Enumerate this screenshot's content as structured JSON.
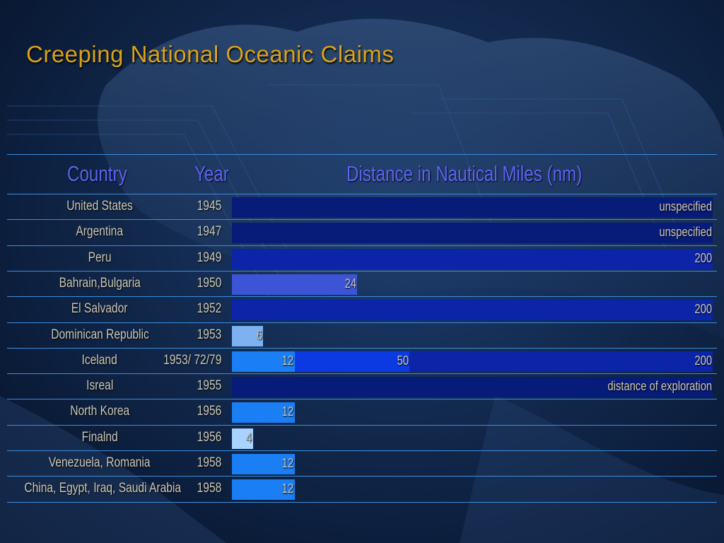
{
  "title": "Creeping National Oceanic Claims",
  "headers": {
    "country": "Country",
    "year": "Year",
    "distance": "Distance in Nautical Miles (nm)"
  },
  "colors": {
    "title": "#d8a21a",
    "header": "#5b64f0",
    "text": "#c9c7b6",
    "rule": "#3a8ee0",
    "seg_4": "#a9d3ff",
    "seg_6": "#7cb1f2",
    "seg_12": "#1a7ef4",
    "seg_24": "#3b55d6",
    "seg_50": "#0b3ae3",
    "seg_200": "#0b24a8",
    "seg_unspecified": "#071b78"
  },
  "chart_data": {
    "type": "bar",
    "title": "Creeping National Oceanic Claims",
    "xlabel": "Distance in Nautical Miles (nm)",
    "xlim": [
      0,
      200
    ],
    "columns": [
      "Country",
      "Year"
    ],
    "rows": [
      {
        "country": "United States",
        "year": "1945",
        "segments": [
          {
            "value": 200,
            "label": "unspecified",
            "kind": "unspecified"
          }
        ]
      },
      {
        "country": "Argentina",
        "year": "1947",
        "segments": [
          {
            "value": 200,
            "label": "unspecified",
            "kind": "unspecified"
          }
        ]
      },
      {
        "country": "Peru",
        "year": "1949",
        "segments": [
          {
            "value": 200,
            "label": "200",
            "kind": "200"
          }
        ]
      },
      {
        "country": "Bahrain,Bulgaria",
        "year": "1950",
        "segments": [
          {
            "value": 24,
            "label": "24",
            "kind": "24"
          }
        ]
      },
      {
        "country": "El Salvador",
        "year": "1952",
        "segments": [
          {
            "value": 200,
            "label": "200",
            "kind": "200"
          }
        ]
      },
      {
        "country": "Dominican Republic",
        "year": "1953",
        "segments": [
          {
            "value": 6,
            "label": "6",
            "kind": "6"
          }
        ]
      },
      {
        "country": "Iceland",
        "year": "1953/ 72/79",
        "segments": [
          {
            "value": 12,
            "label": "12",
            "kind": "12"
          },
          {
            "value": 50,
            "label": "50",
            "kind": "50"
          },
          {
            "value": 200,
            "label": "200",
            "kind": "200"
          }
        ]
      },
      {
        "country": "Isreal",
        "year": "1955",
        "segments": [
          {
            "value": 200,
            "label": "distance of exploration",
            "kind": "unspecified"
          }
        ]
      },
      {
        "country": "North Korea",
        "year": "1956",
        "segments": [
          {
            "value": 12,
            "label": "12",
            "kind": "12"
          }
        ]
      },
      {
        "country": "Finalnd",
        "year": "1956",
        "segments": [
          {
            "value": 4,
            "label": "4",
            "kind": "4"
          }
        ]
      },
      {
        "country": "Venezuela, Romania",
        "year": "1958",
        "segments": [
          {
            "value": 12,
            "label": "12",
            "kind": "12"
          }
        ]
      },
      {
        "country": "China, Egypt, Iraq, Saudi Arabia",
        "year": "1958",
        "segments": [
          {
            "value": 12,
            "label": "12",
            "kind": "12"
          }
        ]
      }
    ]
  }
}
